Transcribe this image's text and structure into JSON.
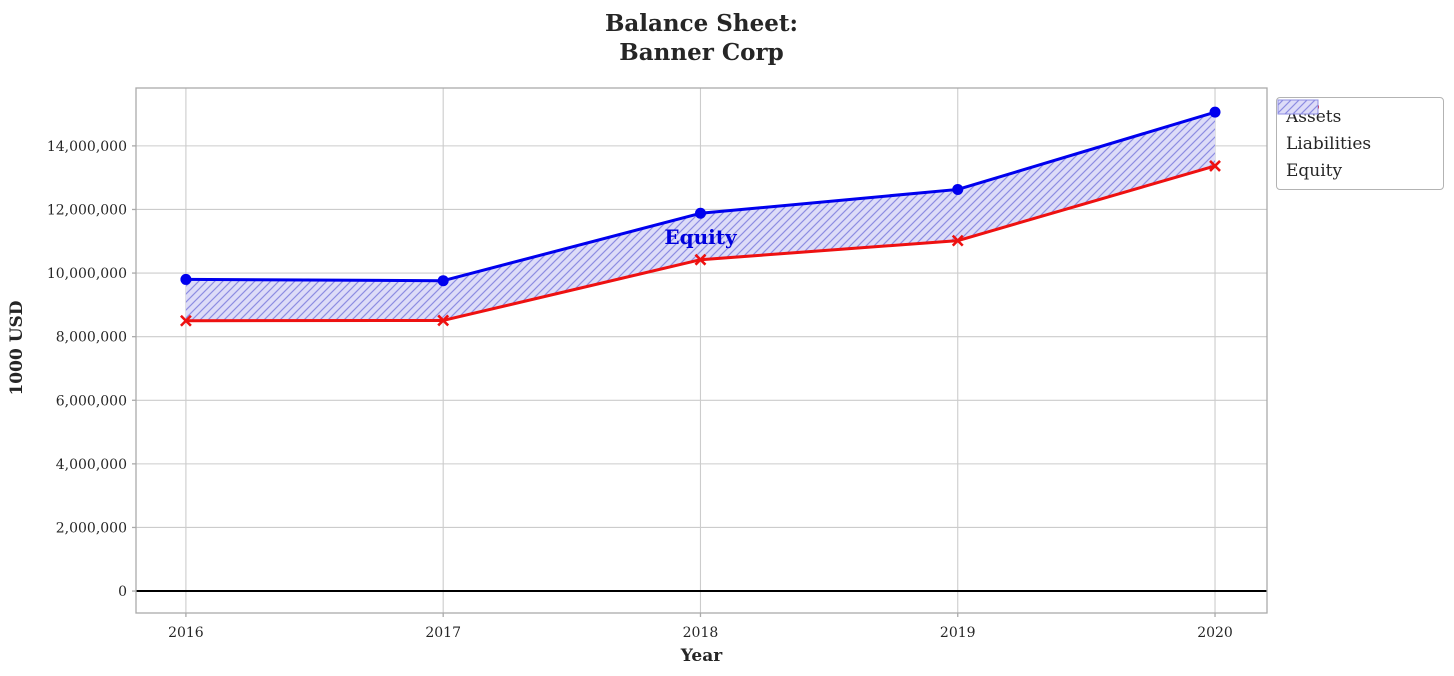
{
  "title": {
    "line1": "Balance Sheet:",
    "line2": "Banner Corp"
  },
  "legend": {
    "items": [
      {
        "label": "Assets"
      },
      {
        "label": "Liabilities"
      },
      {
        "label": "Equity"
      }
    ]
  },
  "chart_data": {
    "type": "line",
    "title": "Balance Sheet: Banner Corp",
    "xlabel": "Year",
    "ylabel": "1000 USD",
    "x": [
      2016,
      2017,
      2018,
      2019,
      2020
    ],
    "x_tick_labels": [
      "2016",
      "2017",
      "2018",
      "2019",
      "2020"
    ],
    "y_ticks": [
      0,
      2000000,
      4000000,
      6000000,
      8000000,
      10000000,
      12000000,
      14000000
    ],
    "y_tick_labels": [
      "0",
      "2,000,000",
      "4,000,000",
      "6,000,000",
      "8,000,000",
      "10,000,000",
      "12,000,000",
      "14,000,000"
    ],
    "xlim": [
      2015.806,
      2020.202
    ],
    "ylim": [
      -690000,
      15820000
    ],
    "grid": true,
    "zero_line": 0,
    "series": [
      {
        "name": "Assets",
        "color": "#0000ee",
        "marker": "circle",
        "line_width": 3,
        "values": [
          9800000,
          9760000,
          11880000,
          12630000,
          15060000
        ]
      },
      {
        "name": "Liabilities",
        "color": "#ee1111",
        "marker": "x",
        "line_width": 3,
        "values": [
          8500000,
          8510000,
          10420000,
          11020000,
          13370000
        ]
      }
    ],
    "fill_between": {
      "label": "Equity",
      "upper": "Assets",
      "lower": "Liabilities",
      "fill_color": "#dddcf8",
      "hatch": "//",
      "hatch_color": "#8d8de2"
    },
    "annotation": {
      "text": "Equity",
      "x": 2018,
      "y": 11150000,
      "color": "#0000dd"
    },
    "legend_position": "outside upper right",
    "colors": {
      "grid": "#cccccc",
      "spine": "#aaaaaa",
      "tick_text": "#262626",
      "zero_line": "#000000"
    }
  }
}
